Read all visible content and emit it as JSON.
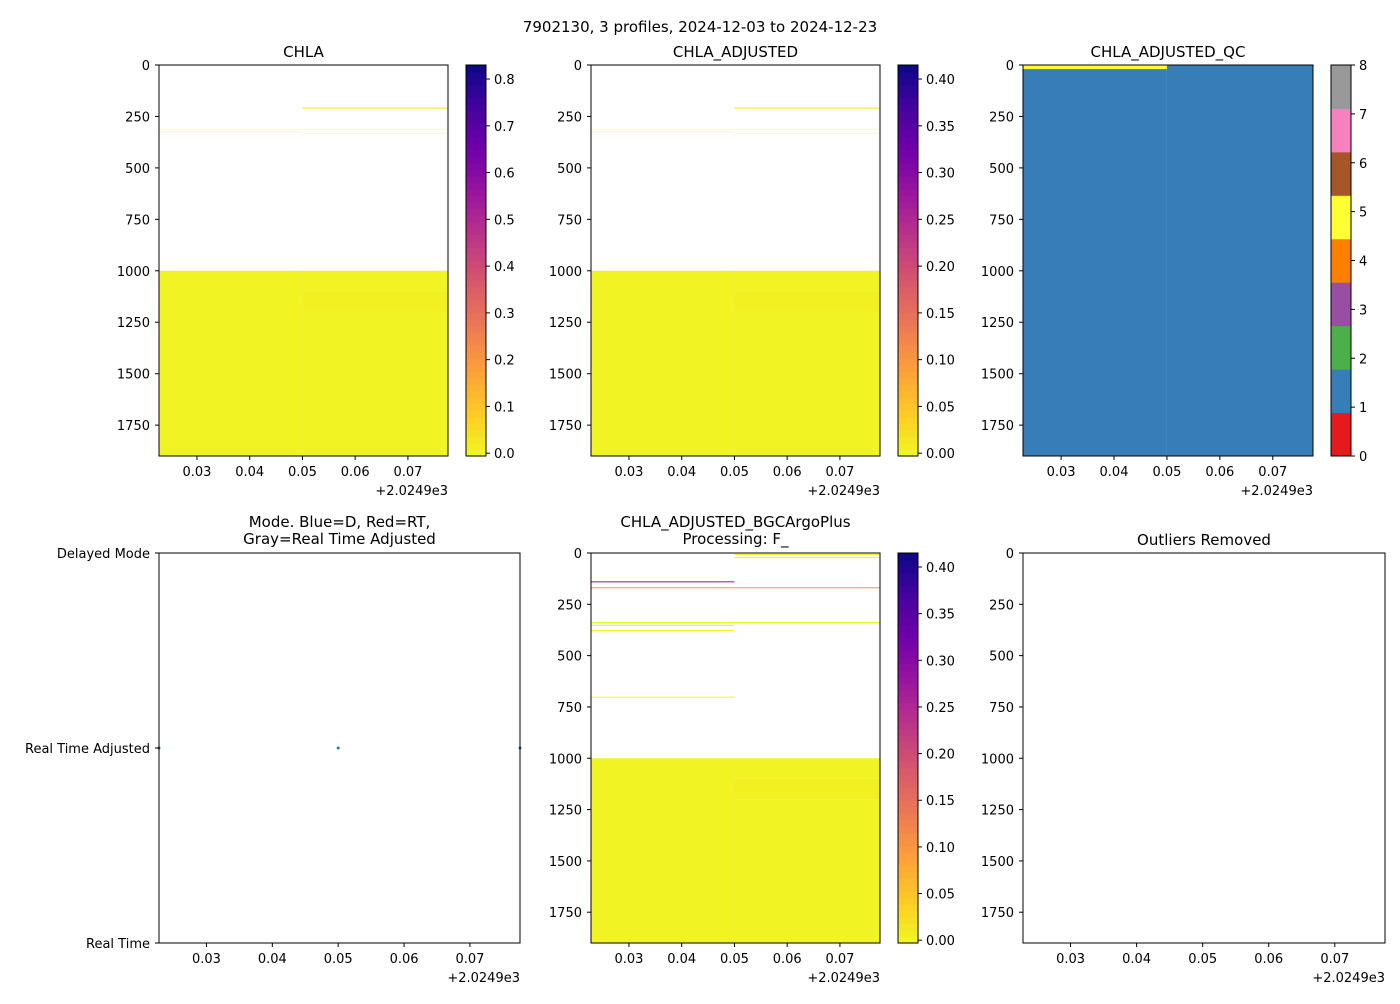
{
  "figure_title": "7902130, 3 profiles, 2024-12-03 to 2024-12-23",
  "chart_data": [
    {
      "id": "chla",
      "type": "heatmap",
      "title": "CHLA",
      "cmap": "plasma_r",
      "xlim": [
        0.0228,
        0.0776
      ],
      "x_offset_label": "+2.0249e3",
      "xticks": [
        0.03,
        0.04,
        0.05,
        0.06,
        0.07
      ],
      "xtick_labels": [
        "0.03",
        "0.04",
        "0.05",
        "0.06",
        "0.07"
      ],
      "ylim": [
        1900,
        0
      ],
      "yticks": [
        0,
        250,
        500,
        750,
        1000,
        1250,
        1500,
        1750
      ],
      "ytick_labels": [
        "0",
        "250",
        "500",
        "750",
        "1000",
        "1250",
        "1500",
        "1750"
      ],
      "clim": [
        -0.006,
        0.83
      ],
      "cticks": [
        0,
        0.1,
        0.2,
        0.3,
        0.4,
        0.5,
        0.6,
        0.7,
        0.8
      ],
      "ctick_labels": [
        "0.0",
        "0.1",
        "0.2",
        "0.3",
        "0.4",
        "0.5",
        "0.6",
        "0.7",
        "0.8"
      ],
      "columns": [
        [
          0.0228,
          0.05
        ],
        [
          0.05,
          0.0776
        ]
      ],
      "cells": [
        {
          "col": 0,
          "d0": 1000,
          "d1": 1900,
          "v": 0.005
        },
        {
          "col": 1,
          "d0": 1000,
          "d1": 1100,
          "v": 0.005
        },
        {
          "col": 1,
          "d0": 1100,
          "d1": 1200,
          "v": 0.012
        },
        {
          "col": 1,
          "d0": 1200,
          "d1": 1900,
          "v": 0.006
        },
        {
          "col": 0,
          "d0": 310,
          "d1": 314,
          "v": 0.002,
          "faint": true
        },
        {
          "col": 0,
          "d0": 322,
          "d1": 326,
          "v": 0.002,
          "faint": true
        },
        {
          "col": 1,
          "d0": 207,
          "d1": 212,
          "v": 0.04
        },
        {
          "col": 1,
          "d0": 310,
          "d1": 314,
          "v": 0.002,
          "faint": true
        },
        {
          "col": 1,
          "d0": 330,
          "d1": 334,
          "v": 0.002,
          "faint": true
        }
      ]
    },
    {
      "id": "chla-adjusted",
      "type": "heatmap",
      "title": "CHLA_ADJUSTED",
      "cmap": "plasma_r",
      "xlim": [
        0.0228,
        0.0776
      ],
      "x_offset_label": "+2.0249e3",
      "xticks": [
        0.03,
        0.04,
        0.05,
        0.06,
        0.07
      ],
      "xtick_labels": [
        "0.03",
        "0.04",
        "0.05",
        "0.06",
        "0.07"
      ],
      "ylim": [
        1900,
        0
      ],
      "yticks": [
        0,
        250,
        500,
        750,
        1000,
        1250,
        1500,
        1750
      ],
      "ytick_labels": [
        "0",
        "250",
        "500",
        "750",
        "1000",
        "1250",
        "1500",
        "1750"
      ],
      "clim": [
        -0.003,
        0.415
      ],
      "cticks": [
        0,
        0.05,
        0.1,
        0.15,
        0.2,
        0.25,
        0.3,
        0.35,
        0.4
      ],
      "ctick_labels": [
        "0.00",
        "0.05",
        "0.10",
        "0.15",
        "0.20",
        "0.25",
        "0.30",
        "0.35",
        "0.40"
      ],
      "columns": [
        [
          0.0228,
          0.05
        ],
        [
          0.05,
          0.0776
        ]
      ],
      "cells": [
        {
          "col": 0,
          "d0": 1000,
          "d1": 1900,
          "v": 0.002
        },
        {
          "col": 1,
          "d0": 1000,
          "d1": 1100,
          "v": 0.002
        },
        {
          "col": 1,
          "d0": 1100,
          "d1": 1200,
          "v": 0.006
        },
        {
          "col": 1,
          "d0": 1200,
          "d1": 1900,
          "v": 0.003
        },
        {
          "col": 0,
          "d0": 310,
          "d1": 314,
          "v": 0.001,
          "faint": true
        },
        {
          "col": 0,
          "d0": 322,
          "d1": 326,
          "v": 0.001,
          "faint": true
        },
        {
          "col": 1,
          "d0": 207,
          "d1": 212,
          "v": 0.02
        },
        {
          "col": 1,
          "d0": 310,
          "d1": 314,
          "v": 0.001,
          "faint": true
        },
        {
          "col": 1,
          "d0": 330,
          "d1": 334,
          "v": 0.001,
          "faint": true
        }
      ]
    },
    {
      "id": "chla-adjusted-qc",
      "type": "heatmap",
      "title": "CHLA_ADJUSTED_QC",
      "cmap": "Set1",
      "xlim": [
        0.0228,
        0.0776
      ],
      "x_offset_label": "+2.0249e3",
      "xticks": [
        0.03,
        0.04,
        0.05,
        0.06,
        0.07
      ],
      "xtick_labels": [
        "0.03",
        "0.04",
        "0.05",
        "0.06",
        "0.07"
      ],
      "ylim": [
        1900,
        0
      ],
      "yticks": [
        0,
        250,
        500,
        750,
        1000,
        1250,
        1500,
        1750
      ],
      "ytick_labels": [
        "0",
        "250",
        "500",
        "750",
        "1000",
        "1250",
        "1500",
        "1750"
      ],
      "clim": [
        0,
        8
      ],
      "cticks": [
        0,
        1,
        2,
        3,
        4,
        5,
        6,
        7,
        8
      ],
      "ctick_labels": [
        "0",
        "1",
        "2",
        "3",
        "4",
        "5",
        "6",
        "7",
        "8"
      ],
      "qc_colors": [
        "#e41a1c",
        "#377eb8",
        "#4daf4a",
        "#984ea3",
        "#ff7f00",
        "#ffff33",
        "#a65628",
        "#f781bf",
        "#999999"
      ],
      "columns": [
        [
          0.0228,
          0.05
        ],
        [
          0.05,
          0.0776
        ]
      ],
      "cells": [
        {
          "col": 0,
          "d0": 0,
          "d1": 1900,
          "v": 1
        },
        {
          "col": 1,
          "d0": 0,
          "d1": 1900,
          "v": 1
        },
        {
          "col": 0,
          "d0": 0,
          "d1": 20,
          "v": 5
        }
      ]
    },
    {
      "id": "mode",
      "type": "scatter",
      "title": "Mode. Blue=D, Red=RT,",
      "title2": "Gray=Real Time Adjusted",
      "xlim": [
        0.0228,
        0.0776
      ],
      "x_offset_label": "+2.0249e3",
      "xticks": [
        0.03,
        0.04,
        0.05,
        0.06,
        0.07
      ],
      "xtick_labels": [
        "0.03",
        "0.04",
        "0.05",
        "0.06",
        "0.07"
      ],
      "ylim": [
        0,
        2
      ],
      "yticks": [
        2,
        1,
        0
      ],
      "ytick_labels": [
        "Delayed Mode",
        "Real Time Adjusted",
        "Real Time"
      ],
      "points": [
        {
          "x": 0.0228,
          "y": 1
        },
        {
          "x": 0.05,
          "y": 1
        },
        {
          "x": 0.0776,
          "y": 1
        }
      ],
      "point_color": "#1f77b4"
    },
    {
      "id": "bgcargoplus",
      "type": "heatmap",
      "title": "CHLA_ADJUSTED_BGCArgoPlus",
      "title2": "Processing: F_",
      "cmap": "plasma_r",
      "xlim": [
        0.0228,
        0.0776
      ],
      "x_offset_label": "+2.0249e3",
      "xticks": [
        0.03,
        0.04,
        0.05,
        0.06,
        0.07
      ],
      "xtick_labels": [
        "0.03",
        "0.04",
        "0.05",
        "0.06",
        "0.07"
      ],
      "ylim": [
        1900,
        0
      ],
      "yticks": [
        0,
        250,
        500,
        750,
        1000,
        1250,
        1500,
        1750
      ],
      "ytick_labels": [
        "0",
        "250",
        "500",
        "750",
        "1000",
        "1250",
        "1500",
        "1750"
      ],
      "clim": [
        -0.003,
        0.415
      ],
      "cticks": [
        0,
        0.05,
        0.1,
        0.15,
        0.2,
        0.25,
        0.3,
        0.35,
        0.4
      ],
      "ctick_labels": [
        "0.00",
        "0.05",
        "0.10",
        "0.15",
        "0.20",
        "0.25",
        "0.30",
        "0.35",
        "0.40"
      ],
      "columns": [
        [
          0.0228,
          0.05
        ],
        [
          0.05,
          0.0776
        ]
      ],
      "cells": [
        {
          "col": 0,
          "d0": 1000,
          "d1": 1900,
          "v": 0.002
        },
        {
          "col": 1,
          "d0": 1000,
          "d1": 1100,
          "v": 0.002
        },
        {
          "col": 1,
          "d0": 1100,
          "d1": 1200,
          "v": 0.006
        },
        {
          "col": 1,
          "d0": 1200,
          "d1": 1900,
          "v": 0.003
        },
        {
          "col": 0,
          "d0": 138,
          "d1": 143,
          "v": 0.28
        },
        {
          "col": 0,
          "d0": 167,
          "d1": 172,
          "v": 0.1
        },
        {
          "col": 1,
          "d0": 167,
          "d1": 172,
          "v": 0.1
        },
        {
          "col": 0,
          "d0": 336,
          "d1": 341,
          "v": 0.001
        },
        {
          "col": 0,
          "d0": 350,
          "d1": 355,
          "v": 0.001
        },
        {
          "col": 0,
          "d0": 375,
          "d1": 380,
          "v": 0.001
        },
        {
          "col": 0,
          "d0": 700,
          "d1": 705,
          "v": 0.001
        },
        {
          "col": 1,
          "d0": 5,
          "d1": 10,
          "v": 0.001
        },
        {
          "col": 1,
          "d0": 20,
          "d1": 25,
          "v": 0.001
        },
        {
          "col": 1,
          "d0": 336,
          "d1": 341,
          "v": 0.001
        }
      ]
    },
    {
      "id": "outliers-removed",
      "type": "scatter",
      "title": "Outliers Removed",
      "xlim": [
        0.0228,
        0.0776
      ],
      "x_offset_label": "+2.0249e3",
      "xticks": [
        0.03,
        0.04,
        0.05,
        0.06,
        0.07
      ],
      "xtick_labels": [
        "0.03",
        "0.04",
        "0.05",
        "0.06",
        "0.07"
      ],
      "ylim": [
        1900,
        0
      ],
      "yticks": [
        0,
        250,
        500,
        750,
        1000,
        1250,
        1500,
        1750
      ],
      "ytick_labels": [
        "0",
        "250",
        "500",
        "750",
        "1000",
        "1250",
        "1500",
        "1750"
      ],
      "points": []
    }
  ]
}
